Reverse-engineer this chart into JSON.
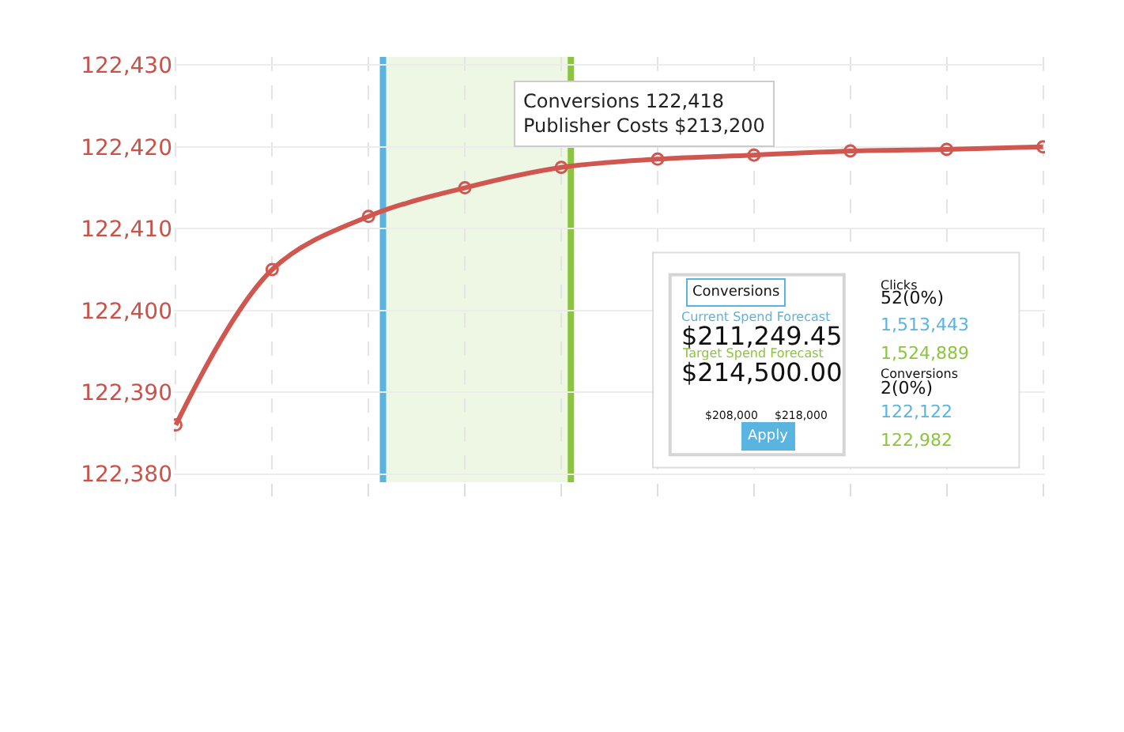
{
  "chart_data": [
    {
      "type": "line",
      "categories": [
        null,
        null,
        null,
        null,
        null,
        null,
        null,
        null,
        null,
        null
      ],
      "series": [
        {
          "color": "#d0574f",
          "values": [
            122386,
            122405,
            122411.5,
            122415,
            122417.5,
            122418.5,
            122419,
            122419.5,
            122419.7,
            122420
          ]
        }
      ],
      "ylim": [
        122379,
        122431
      ],
      "yticks": [
        {
          "value": 122380,
          "label": "122,380"
        },
        {
          "value": 122390,
          "label": "122,390"
        },
        {
          "value": 122400,
          "label": "122,400"
        },
        {
          "value": 122410,
          "label": "122,410"
        },
        {
          "value": 122420,
          "label": "122,420"
        },
        {
          "value": 122430,
          "label": "122,430"
        }
      ],
      "tick_labels": "y",
      "grid": true,
      "marker": "circle",
      "line_style": "solid",
      "annotations": [
        "Conversions 122,418",
        "Publisher Costs $213,200"
      ]
    },
    {
      "type": "other",
      "annotations": [
        "Conversions",
        "Current Spend Forecast",
        "$211,249.45",
        "Target Spend Forecast",
        "$214,500.00",
        "$208,000",
        "$218,000",
        "Apply",
        "Clicks",
        "52(0%)",
        "1,513,443",
        "1,524,889",
        "Conversions",
        "2(0%)",
        "122,122",
        "122,982"
      ]
    }
  ]
}
